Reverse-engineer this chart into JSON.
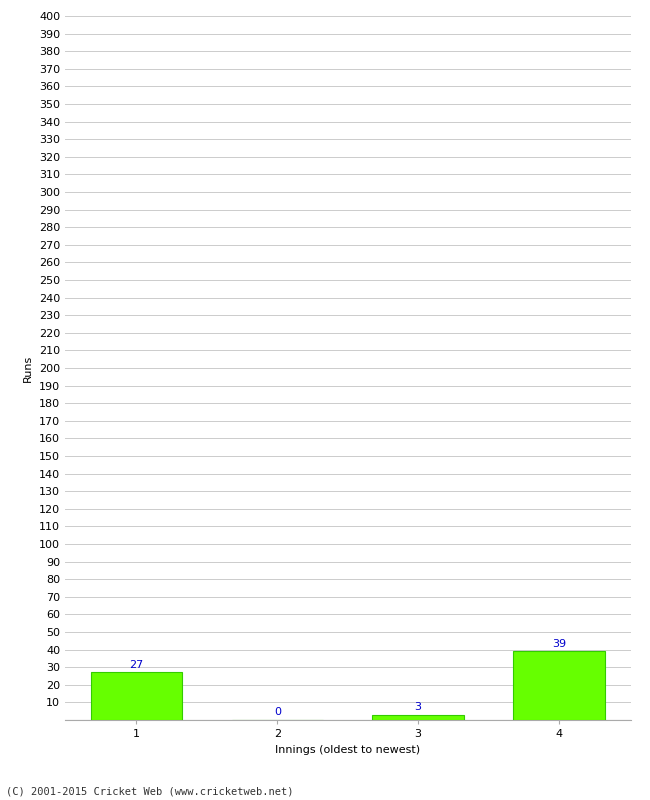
{
  "categories": [
    "1",
    "2",
    "3",
    "4"
  ],
  "values": [
    27,
    0,
    3,
    39
  ],
  "bar_color": "#66ff00",
  "bar_edge_color": "#33cc00",
  "ylabel": "Runs",
  "xlabel": "Innings (oldest to newest)",
  "ylim": [
    0,
    400
  ],
  "ytick_step": 10,
  "value_color": "#0000cc",
  "value_fontsize": 8,
  "axis_label_fontsize": 8,
  "tick_fontsize": 8,
  "footer": "(C) 2001-2015 Cricket Web (www.cricketweb.net)",
  "background_color": "#ffffff",
  "grid_color": "#cccccc",
  "bar_width": 0.65
}
